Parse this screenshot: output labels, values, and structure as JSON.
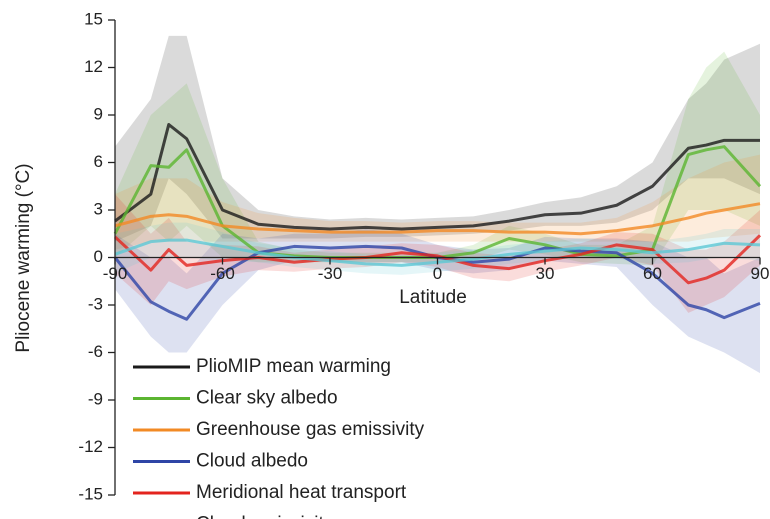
{
  "chart_data": {
    "type": "line",
    "x_label": "Latitude",
    "y_label": "Pliocene warming (°C)",
    "x": [
      -90,
      -80,
      -75,
      -70,
      -60,
      -50,
      -40,
      -30,
      -20,
      -10,
      0,
      10,
      20,
      30,
      40,
      50,
      60,
      70,
      75,
      80,
      90
    ],
    "xlim": [
      -90,
      90
    ],
    "xticks": [
      -90,
      -60,
      -30,
      0,
      30,
      60,
      90
    ],
    "ylim": [
      -15,
      15
    ],
    "yticks": [
      -15,
      -12,
      -9,
      -6,
      -3,
      0,
      3,
      6,
      9,
      12,
      15
    ],
    "series": [
      {
        "name": "PlioMIP mean warming",
        "color": "#1a1a1a",
        "values": [
          2.3,
          4,
          8.4,
          7.5,
          3,
          2.1,
          1.9,
          1.8,
          1.9,
          1.8,
          1.9,
          2,
          2.3,
          2.7,
          2.8,
          3.3,
          4.5,
          6.9,
          7.1,
          7.4,
          7.4
        ],
        "lower": [
          1,
          2,
          5,
          4,
          1.2,
          1.2,
          1.2,
          1.2,
          1.3,
          1.3,
          1.4,
          1.5,
          1.7,
          2,
          2,
          2.2,
          3,
          5,
          5,
          5,
          4
        ],
        "upper": [
          7,
          10,
          14,
          14,
          5,
          3,
          2.6,
          2.4,
          2.5,
          2.4,
          2.5,
          2.6,
          3,
          3.5,
          3.8,
          4.5,
          6,
          10,
          11,
          12.5,
          13.5
        ]
      },
      {
        "name": "Clear sky albedo",
        "color": "#5bb531",
        "values": [
          1.5,
          5.8,
          5.7,
          6.8,
          2,
          0.3,
          0.1,
          0,
          0,
          0,
          0,
          0.3,
          1.2,
          0.8,
          0.2,
          0.1,
          0.5,
          6.5,
          6.8,
          7,
          4.5
        ],
        "lower": [
          0,
          2,
          1,
          2,
          0,
          -0.3,
          -0.3,
          -0.3,
          -0.3,
          -0.3,
          -0.3,
          -0.2,
          0.5,
          0.2,
          -0.3,
          -0.4,
          -0.5,
          3,
          3,
          3,
          2
        ],
        "upper": [
          4,
          9,
          10,
          11,
          5,
          1,
          0.5,
          0.3,
          0.3,
          0.3,
          0.3,
          0.8,
          2,
          1.5,
          0.8,
          0.8,
          2,
          10,
          12,
          13,
          9
        ]
      },
      {
        "name": "Greenhouse gas emissivity",
        "color": "#f28a24",
        "values": [
          2,
          2.6,
          2.7,
          2.6,
          2,
          1.8,
          1.7,
          1.6,
          1.6,
          1.6,
          1.7,
          1.7,
          1.6,
          1.6,
          1.5,
          1.7,
          2,
          2.5,
          2.8,
          3,
          3.4
        ],
        "lower": [
          0.5,
          1,
          1,
          1,
          1,
          1,
          1,
          1,
          1,
          1,
          1,
          1,
          1,
          1,
          1,
          1,
          1,
          1,
          1.2,
          1.3,
          1.5
        ],
        "upper": [
          4,
          5,
          5,
          5,
          3.5,
          2.8,
          2.5,
          2.3,
          2.3,
          2.2,
          2.3,
          2.3,
          2.2,
          2.2,
          2.2,
          2.5,
          3.5,
          5,
          5.5,
          6,
          6.5
        ]
      },
      {
        "name": "Cloud albedo",
        "color": "#2e45a6",
        "values": [
          0,
          -2.8,
          -3.4,
          -3.9,
          -1,
          0.3,
          0.7,
          0.6,
          0.7,
          0.6,
          0,
          -0.3,
          -0.1,
          0.6,
          0.4,
          0.3,
          -1,
          -3,
          -3.3,
          -3.8,
          -2.9
        ],
        "lower": [
          -2,
          -5,
          -6,
          -6,
          -3,
          -0.8,
          -0.2,
          -0.3,
          -0.3,
          -0.3,
          -0.8,
          -1,
          -0.8,
          -0.2,
          -0.4,
          -0.6,
          -3,
          -5,
          -5.5,
          -6,
          -7.3
        ],
        "upper": [
          1.5,
          0,
          0,
          -1,
          1.5,
          1.2,
          1.5,
          1.5,
          1.8,
          1.5,
          0.8,
          0.5,
          0.6,
          1.3,
          1.2,
          1.2,
          1,
          0,
          0,
          -1,
          0
        ]
      },
      {
        "name": "Meridional heat transport",
        "color": "#e3241e",
        "values": [
          1.3,
          -0.8,
          0.5,
          -0.5,
          -0.2,
          0,
          -0.3,
          -0.1,
          0,
          0.3,
          0.1,
          -0.5,
          -0.7,
          -0.2,
          0.2,
          0.8,
          0.5,
          -1.6,
          -1.3,
          -0.8,
          1.4
        ],
        "lower": [
          -1,
          -3,
          -1.5,
          -2,
          -1.2,
          -0.8,
          -0.9,
          -0.7,
          -0.6,
          -0.3,
          -0.6,
          -1.3,
          -1.5,
          -0.9,
          -0.5,
          0,
          -0.5,
          -3.5,
          -3,
          -2.5,
          -0.5
        ],
        "upper": [
          4,
          1.5,
          2.5,
          1,
          0.8,
          0.7,
          0.3,
          0.5,
          0.7,
          0.9,
          0.8,
          0.3,
          0.1,
          0.5,
          0.9,
          1.6,
          1.5,
          0.5,
          0.5,
          1,
          3
        ]
      },
      {
        "name": "Cloud emissivity",
        "color": "#5cc8d4",
        "values": [
          0.2,
          1,
          1.1,
          1.1,
          0.7,
          0.3,
          0,
          -0.2,
          -0.4,
          -0.5,
          -0.3,
          -0.1,
          0.2,
          0.4,
          0.6,
          0.5,
          0.3,
          0.5,
          0.7,
          0.9,
          0.8
        ],
        "lower": [
          -1,
          0,
          0,
          0,
          -0.2,
          -0.3,
          -0.6,
          -0.8,
          -1,
          -1.1,
          -0.9,
          -0.7,
          -0.4,
          -0.2,
          0,
          -0.1,
          -0.4,
          -0.3,
          -0.1,
          0,
          -0.2
        ],
        "upper": [
          1.5,
          2,
          2.2,
          2.2,
          1.6,
          0.9,
          0.6,
          0.4,
          0.2,
          0.1,
          0.3,
          0.5,
          0.8,
          1,
          1.2,
          1.1,
          1,
          1.3,
          1.5,
          1.8,
          1.8
        ]
      }
    ]
  }
}
